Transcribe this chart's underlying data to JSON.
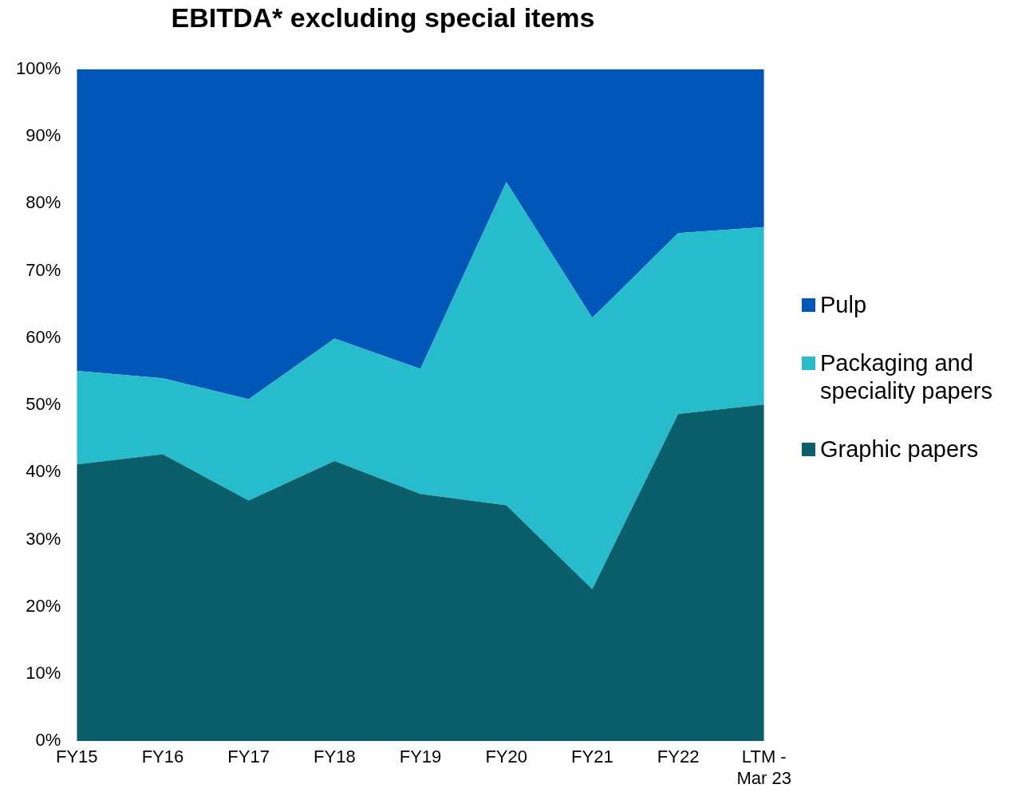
{
  "chart_data": {
    "type": "area",
    "title": "EBITDA* excluding special items",
    "stacked": true,
    "legend": "right",
    "grid": false,
    "categories": [
      "FY15",
      "FY16",
      "FY17",
      "FY18",
      "FY19",
      "FY20",
      "FY21",
      "FY22",
      "LTM - Mar 23"
    ],
    "ylim": [
      0,
      100
    ],
    "yticks": [
      {
        "value": 0,
        "label": "0%"
      },
      {
        "value": 10,
        "label": "10%"
      },
      {
        "value": 20,
        "label": "20%"
      },
      {
        "value": 30,
        "label": "30%"
      },
      {
        "value": 40,
        "label": "40%"
      },
      {
        "value": 50,
        "label": "50%"
      },
      {
        "value": 60,
        "label": "60%"
      },
      {
        "value": 70,
        "label": "70%"
      },
      {
        "value": 80,
        "label": "80%"
      },
      {
        "value": 90,
        "label": "90%"
      },
      {
        "value": 100,
        "label": "100%"
      }
    ],
    "series": [
      {
        "name": "Graphic papers",
        "color": "#0b5f6a",
        "values": [
          41.2,
          42.7,
          35.8,
          41.7,
          36.8,
          35.1,
          22.6,
          48.7,
          50.1
        ]
      },
      {
        "name": "Packaging and speciality papers",
        "color": "#27bccb",
        "values": [
          13.9,
          11.3,
          15.1,
          18.2,
          18.6,
          48.1,
          40.4,
          26.9,
          26.4
        ]
      },
      {
        "name": "Pulp",
        "color": "#0057b8",
        "values": [
          44.9,
          46.0,
          49.1,
          40.1,
          44.6,
          16.8,
          37.0,
          24.4,
          23.5
        ]
      }
    ]
  }
}
